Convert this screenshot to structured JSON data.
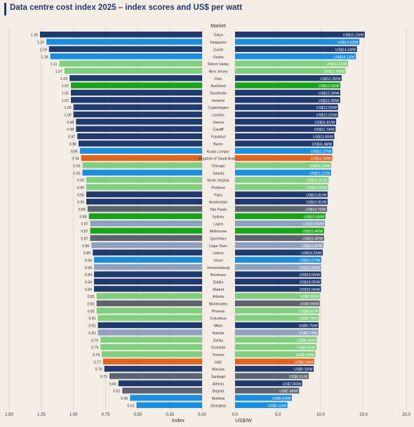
{
  "title": "Data centre cost index 2025 – index scores and US$ per watt",
  "chart_data": [
    {
      "type": "bar",
      "orientation": "horizontal",
      "panel": "left",
      "categories_header": "Market",
      "xlabel": "Index",
      "xlim": [
        1.5,
        0.0
      ],
      "xticks": [
        "1.50",
        "1.25",
        "1.00",
        "0.75",
        "0.50",
        "0.25",
        "0.00"
      ],
      "grid": true,
      "categories": [
        "Tokyo",
        "Singapore",
        "Zurich",
        "Osaka",
        "Silicon Valley",
        "New Jersey",
        "Oslo",
        "Auckland",
        "Stockholm",
        "Helsinki",
        "Copenhagen",
        "London",
        "Vienna",
        "Cardiff",
        "Frankfurt",
        "Berlin",
        "Kuala Lumpur",
        "Kingdom of Saudi Arabia",
        "Chicago",
        "Jakarta",
        "North Virginia",
        "Portland",
        "Paris",
        "Amsterdam",
        "São Paulo",
        "Sydney",
        "Lagos",
        "Melbourne",
        "Querétaro",
        "Cape Town",
        "Lisbon",
        "Seoul",
        "Johannesburg",
        "Bordeaux",
        "Dublin",
        "Madrid",
        "Atlanta",
        "Montevideo",
        "Phoenix",
        "Columbus",
        "Milan",
        "Nairobi",
        "Dallas",
        "Charlotte",
        "Toronto",
        "UAE",
        "Warsaw",
        "Santiago",
        "Athens",
        "Bogotá",
        "Mumbai",
        "Shanghai"
      ],
      "values": [
        1.26,
        1.21,
        1.19,
        1.18,
        1.11,
        1.07,
        1.03,
        1.02,
        1.02,
        1.02,
        1.0,
        1.0,
        0.98,
        0.98,
        0.97,
        0.96,
        0.95,
        0.94,
        0.93,
        0.93,
        0.9,
        0.9,
        0.9,
        0.9,
        0.89,
        0.88,
        0.87,
        0.87,
        0.87,
        0.86,
        0.85,
        0.84,
        0.84,
        0.84,
        0.84,
        0.84,
        0.82,
        0.82,
        0.82,
        0.81,
        0.81,
        0.81,
        0.79,
        0.79,
        0.78,
        0.77,
        0.76,
        0.72,
        0.65,
        0.62,
        0.56,
        0.51
      ],
      "value_labels": [
        "1.26",
        "1.21",
        "1.19",
        "1.18",
        "1.11",
        "1.07",
        "1.03",
        "1.02",
        "1.02",
        "1.02",
        "1.00",
        "1.00",
        "0.98",
        "0.98",
        "0.97",
        "0.96",
        "0.95",
        "0.94",
        "0.93",
        "0.93",
        "0.90",
        "0.90",
        "0.90",
        "0.90",
        "0.89",
        "0.88",
        "0.87",
        "0.87",
        "0.87",
        "0.86",
        "0.85",
        "0.84",
        "0.84",
        "0.84",
        "0.84",
        "0.84",
        "0.82",
        "0.82",
        "0.82",
        "0.81",
        "0.81",
        "0.81",
        "0.79",
        "0.79",
        "0.78",
        "0.77",
        "0.76",
        "0.72",
        "0.65",
        "0.62",
        "0.56",
        "0.51"
      ]
    },
    {
      "type": "bar",
      "orientation": "horizontal",
      "panel": "right",
      "xlabel": "US$/W",
      "xlim": [
        0,
        20
      ],
      "xticks": [
        "0.0",
        "5.0",
        "10.0",
        "15.0",
        "20.0"
      ],
      "grid": true,
      "categories": [
        "Tokyo",
        "Singapore",
        "Zurich",
        "Osaka",
        "Silicon Valley",
        "New Jersey",
        "Oslo",
        "Auckland",
        "Stockholm",
        "Helsinki",
        "Copenhagen",
        "London",
        "Vienna",
        "Cardiff",
        "Frankfurt",
        "Berlin",
        "Kuala Lumpur",
        "Kingdom of Saudi Arabia",
        "Chicago",
        "Jakarta",
        "North Virginia",
        "Portland",
        "Paris",
        "Amsterdam",
        "São Paulo",
        "Sydney",
        "Lagos",
        "Melbourne",
        "Querétaro",
        "Cape Town",
        "Lisbon",
        "Seoul",
        "Johannesburg",
        "Bordeaux",
        "Dublin",
        "Madrid",
        "Atlanta",
        "Montevideo",
        "Phoenix",
        "Columbus",
        "Milan",
        "Nairobi",
        "Dallas",
        "Charlotte",
        "Toronto",
        "UAE",
        "Warsaw",
        "Santiago",
        "Athens",
        "Bogotá",
        "Mumbai",
        "Shanghai"
      ],
      "values": [
        15.15,
        14.53,
        14.24,
        14.12,
        13.21,
        12.9,
        12.45,
        12.3,
        12.29,
        12.28,
        12.02,
        12.02,
        11.81,
        11.74,
        11.6,
        11.48,
        11.37,
        11.34,
        11.23,
        11.21,
        10.92,
        10.87,
        10.81,
        10.81,
        10.75,
        10.56,
        10.5,
        10.4,
        10.4,
        10.33,
        10.25,
        10.07,
        10.06,
        10.05,
        10.05,
        10.04,
        9.9,
        9.89,
        9.82,
        9.79,
        9.75,
        9.74,
        9.54,
        9.5,
        9.39,
        9.24,
        9.18,
        8.61,
        7.84,
        7.48,
        6.64,
        6.12
      ],
      "value_labels": [
        "US$15.15/W",
        "US$14.53/W",
        "US$14.24/W",
        "US$14.12/W",
        "US$13.21/W",
        "US$12.90/W",
        "US$12.45/W",
        "US$12.30/W",
        "US$12.29/W",
        "US$12.28/W",
        "US$12.02/W",
        "US$12.02/W",
        "US$11.81/W",
        "US$11.74/W",
        "US$11.60/W",
        "US$11.48/W",
        "US$11.37/W",
        "US$11.34/W",
        "US$11.23/W",
        "US$11.21/W",
        "US$10.92/W",
        "US$10.87/W",
        "US$10.81/W",
        "US$10.81/W",
        "US$10.75/W",
        "US$10.56/W",
        "US$10.50/W",
        "US$10.40/W",
        "US$10.40/W",
        "US$10.33/W",
        "US$10.25/W",
        "US$10.07/W",
        "US$10.06/W",
        "US$10.05/W",
        "US$10.05/W",
        "US$10.04/W",
        "US$9.90/W",
        "US$9.89/W",
        "US$9.82/W",
        "US$9.79/W",
        "US$9.75/W",
        "US$9.74/W",
        "US$9.54/W",
        "US$9.50/W",
        "US$9.39/W",
        "US$9.24/W",
        "US$9.18/W",
        "US$8.61/W",
        "US$7.84/W",
        "US$7.48/W",
        "US$6.64/W",
        "US$6.12/W"
      ]
    }
  ],
  "bar_colors": [
    "#1f3a6e",
    "#1a8fe0",
    "#1f3a6e",
    "#1a8fe0",
    "#7fcf7f",
    "#7fcf7f",
    "#1f3a6e",
    "#19a319",
    "#1f3a6e",
    "#1f3a6e",
    "#1f3a6e",
    "#1f3a6e",
    "#1f3a6e",
    "#1f3a6e",
    "#1f3a6e",
    "#1f3a6e",
    "#1a8fe0",
    "#e0641e",
    "#7fcf7f",
    "#1a8fe0",
    "#7fcf7f",
    "#7fcf7f",
    "#1f3a6e",
    "#1f3a6e",
    "#5b6470",
    "#19a319",
    "#8ea2c0",
    "#19a319",
    "#5b6470",
    "#8ea2c0",
    "#1f3a6e",
    "#1a8fe0",
    "#8ea2c0",
    "#1f3a6e",
    "#1f3a6e",
    "#1f3a6e",
    "#7fcf7f",
    "#5b6470",
    "#7fcf7f",
    "#7fcf7f",
    "#1f3a6e",
    "#8ea2c0",
    "#7fcf7f",
    "#7fcf7f",
    "#7fcf7f",
    "#e0641e",
    "#1f3a6e",
    "#5b6470",
    "#1f3a6e",
    "#5b6470",
    "#1a8fe0",
    "#1a8fe0"
  ],
  "colors": {
    "title": "#1f3a6e",
    "background": "#f3ede6",
    "grid": "#cfc6bd",
    "text": "#333333"
  }
}
